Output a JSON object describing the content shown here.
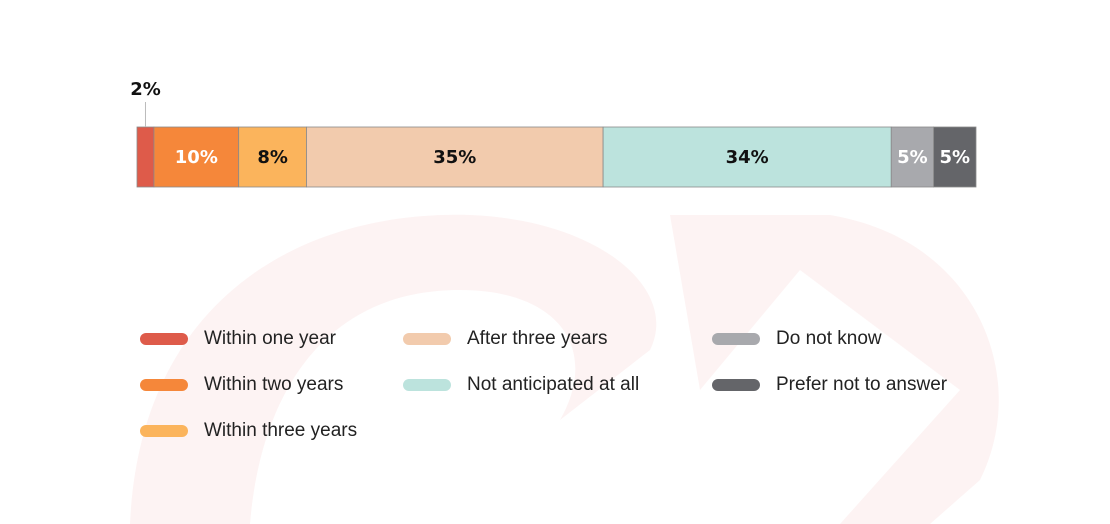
{
  "chart_data": {
    "type": "bar",
    "orientation": "horizontal-stacked",
    "categories": [
      "Within one year",
      "Within two years",
      "Within three years",
      "After three years",
      "Not anticipated at all",
      "Do not know",
      "Prefer not to answer"
    ],
    "values": [
      2,
      10,
      8,
      35,
      34,
      5,
      5
    ],
    "labels": [
      "2%",
      "10%",
      "8%",
      "35%",
      "34%",
      "5%",
      "5%"
    ],
    "colors": [
      "#DE5B4A",
      "#F5873A",
      "#FBB45C",
      "#F2CBAD",
      "#BCE3DD",
      "#A8A9AD",
      "#646569"
    ],
    "label_colors": [
      "#111111",
      "#ffffff",
      "#111111",
      "#111111",
      "#111111",
      "#ffffff",
      "#ffffff"
    ],
    "xlim": [
      0,
      99
    ],
    "legend_position": "bottom",
    "grid": false
  }
}
